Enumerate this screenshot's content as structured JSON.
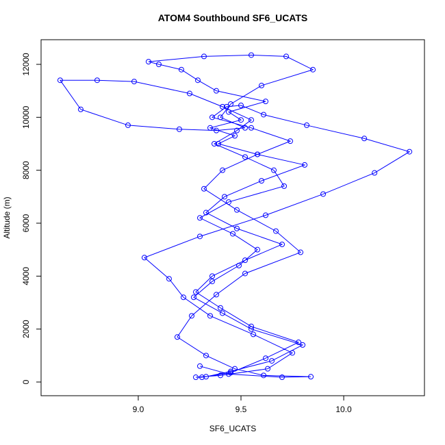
{
  "chart_data": {
    "type": "line",
    "markers": true,
    "title": "ATOM4 Southbound SF6_UCATS",
    "x_label": "SF6_UCATS",
    "y_label": "Altitude (m)",
    "color": "#0000ff",
    "x": [
      9.31,
      9.45,
      9.62,
      9.78,
      9.55,
      9.4,
      9.28,
      9.36,
      9.52,
      9.7,
      9.48,
      9.33,
      9.42,
      9.6,
      9.81,
      9.58,
      9.39,
      9.47,
      9.35,
      9.5,
      9.44,
      9.62,
      9.38,
      9.29,
      9.21,
      9.1,
      9.05,
      9.32,
      9.55,
      9.72,
      9.85,
      9.6,
      9.45,
      9.4,
      9.52,
      9.38,
      9.2,
      8.95,
      8.72,
      8.62,
      8.8,
      8.98,
      9.25,
      9.41,
      9.55,
      9.48,
      9.37,
      9.52,
      9.66,
      9.71,
      9.44,
      9.3,
      9.46,
      9.58,
      9.49,
      9.36,
      9.27,
      9.41,
      9.55,
      9.8,
      9.65,
      9.45,
      9.33,
      9.28,
      9.4,
      9.63,
      9.75,
      9.56,
      9.35,
      9.22,
      9.15,
      9.03,
      9.3,
      9.62,
      9.9,
      10.15,
      10.32,
      10.1,
      9.82,
      9.61,
      9.5,
      9.43,
      9.36,
      9.55,
      9.74,
      9.58,
      9.41,
      9.32,
      9.48,
      9.67,
      9.79,
      9.52,
      9.38,
      9.26,
      9.19,
      9.33,
      9.47,
      9.61,
      9.84,
      9.7,
      9.44,
      9.3
    ],
    "values": [
      180,
      350,
      900,
      1500,
      2100,
      2800,
      3400,
      4000,
      4600,
      5200,
      5800,
      6400,
      7000,
      7600,
      8200,
      8600,
      9000,
      9300,
      9600,
      9900,
      10200,
      10600,
      11000,
      11400,
      11800,
      12000,
      12100,
      12300,
      12350,
      12300,
      11800,
      11200,
      10500,
      10000,
      9600,
      9500,
      9550,
      9700,
      10300,
      11400,
      11400,
      11350,
      10900,
      10400,
      9900,
      9500,
      9000,
      8500,
      8000,
      7400,
      6800,
      6200,
      5600,
      5000,
      4400,
      3800,
      3200,
      2600,
      2000,
      1400,
      800,
      400,
      200,
      180,
      250,
      500,
      1100,
      1800,
      2500,
      3200,
      3900,
      4700,
      5500,
      6300,
      7100,
      7900,
      8700,
      9200,
      9700,
      10100,
      10450,
      10400,
      10000,
      9600,
      9100,
      8600,
      8000,
      7300,
      6500,
      5700,
      4900,
      4100,
      3300,
      2500,
      1700,
      1000,
      500,
      250,
      200,
      180,
      300,
      600
    ],
    "xlim": [
      8.527,
      10.393
    ],
    "ylim": [
      -517,
      12931
    ],
    "xticks": [
      {
        "value": 9,
        "label": "9.0"
      },
      9.5,
      {
        "value": 10,
        "label": "10.0"
      }
    ],
    "yticks": [
      0,
      2000,
      4000,
      6000,
      8000,
      10000,
      12000
    ],
    "grid": false
  }
}
